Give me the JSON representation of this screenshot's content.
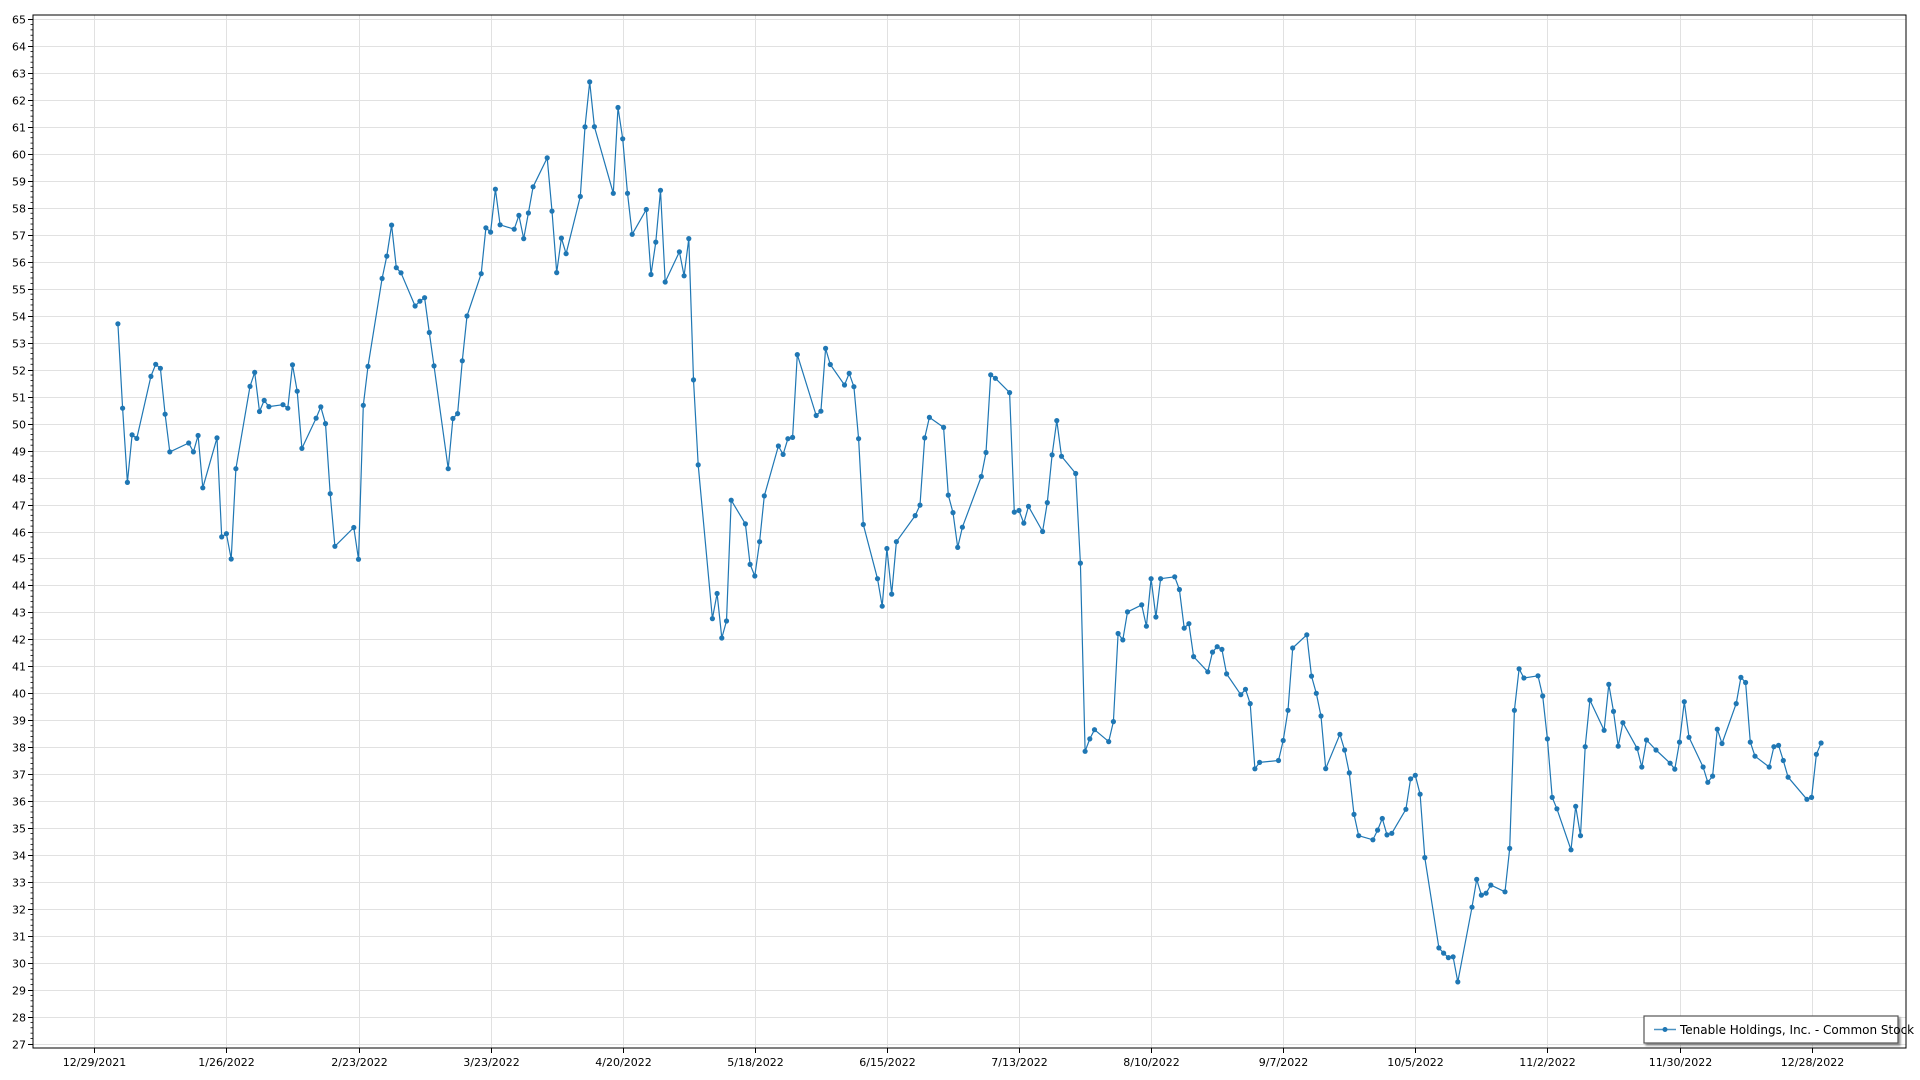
{
  "chart_data": {
    "type": "line",
    "title": "",
    "xlabel": "",
    "ylabel": "",
    "grid": true,
    "legend_position": "bottom-right",
    "ylim": [
      26.85,
      65.15
    ],
    "xlim": [
      "2021-12-16",
      "2023-01-17"
    ],
    "y_ticks": [
      27,
      28,
      29,
      30,
      31,
      32,
      33,
      34,
      35,
      36,
      37,
      38,
      39,
      40,
      41,
      42,
      43,
      44,
      45,
      46,
      47,
      48,
      49,
      50,
      51,
      52,
      53,
      54,
      55,
      56,
      57,
      58,
      59,
      60,
      61,
      62,
      63,
      64,
      65
    ],
    "x_ticks": [
      "2021-12-29",
      "2022-01-26",
      "2022-02-23",
      "2022-03-23",
      "2022-04-20",
      "2022-05-18",
      "2022-06-15",
      "2022-07-13",
      "2022-08-10",
      "2022-09-07",
      "2022-10-05",
      "2022-11-02",
      "2022-11-30",
      "2022-12-28"
    ],
    "x_tick_labels": [
      "12/29/2021",
      "1/26/2022",
      "2/23/2022",
      "3/23/2022",
      "4/20/2022",
      "5/18/2022",
      "6/15/2022",
      "7/13/2022",
      "8/10/2022",
      "9/7/2022",
      "10/5/2022",
      "11/2/2022",
      "11/30/2022",
      "12/28/2022"
    ],
    "series": [
      {
        "name": "Tenable Holdings, Inc. - Common Stock",
        "color": "#1f77b4",
        "x": [
          "2022-01-03",
          "2022-01-04",
          "2022-01-05",
          "2022-01-06",
          "2022-01-07",
          "2022-01-10",
          "2022-01-11",
          "2022-01-12",
          "2022-01-13",
          "2022-01-14",
          "2022-01-18",
          "2022-01-19",
          "2022-01-20",
          "2022-01-21",
          "2022-01-24",
          "2022-01-25",
          "2022-01-26",
          "2022-01-27",
          "2022-01-28",
          "2022-01-31",
          "2022-02-01",
          "2022-02-02",
          "2022-02-03",
          "2022-02-04",
          "2022-02-07",
          "2022-02-08",
          "2022-02-09",
          "2022-02-10",
          "2022-02-11",
          "2022-02-14",
          "2022-02-15",
          "2022-02-16",
          "2022-02-17",
          "2022-02-18",
          "2022-02-22",
          "2022-02-23",
          "2022-02-24",
          "2022-02-25",
          "2022-02-28",
          "2022-03-01",
          "2022-03-02",
          "2022-03-03",
          "2022-03-04",
          "2022-03-07",
          "2022-03-08",
          "2022-03-09",
          "2022-03-10",
          "2022-03-11",
          "2022-03-14",
          "2022-03-15",
          "2022-03-16",
          "2022-03-17",
          "2022-03-18",
          "2022-03-21",
          "2022-03-22",
          "2022-03-23",
          "2022-03-24",
          "2022-03-25",
          "2022-03-28",
          "2022-03-29",
          "2022-03-30",
          "2022-03-31",
          "2022-04-01",
          "2022-04-04",
          "2022-04-05",
          "2022-04-06",
          "2022-04-07",
          "2022-04-08",
          "2022-04-11",
          "2022-04-12",
          "2022-04-13",
          "2022-04-14",
          "2022-04-18",
          "2022-04-19",
          "2022-04-20",
          "2022-04-21",
          "2022-04-22",
          "2022-04-25",
          "2022-04-26",
          "2022-04-27",
          "2022-04-28",
          "2022-04-29",
          "2022-05-02",
          "2022-05-03",
          "2022-05-04",
          "2022-05-05",
          "2022-05-06",
          "2022-05-09",
          "2022-05-10",
          "2022-05-11",
          "2022-05-12",
          "2022-05-13",
          "2022-05-16",
          "2022-05-17",
          "2022-05-18",
          "2022-05-19",
          "2022-05-20",
          "2022-05-23",
          "2022-05-24",
          "2022-05-25",
          "2022-05-26",
          "2022-05-27",
          "2022-05-31",
          "2022-06-01",
          "2022-06-02",
          "2022-06-03",
          "2022-06-06",
          "2022-06-07",
          "2022-06-08",
          "2022-06-09",
          "2022-06-10",
          "2022-06-13",
          "2022-06-14",
          "2022-06-15",
          "2022-06-16",
          "2022-06-17",
          "2022-06-21",
          "2022-06-22",
          "2022-06-23",
          "2022-06-24",
          "2022-06-27",
          "2022-06-28",
          "2022-06-29",
          "2022-06-30",
          "2022-07-01",
          "2022-07-05",
          "2022-07-06",
          "2022-07-07",
          "2022-07-08",
          "2022-07-11",
          "2022-07-12",
          "2022-07-13",
          "2022-07-14",
          "2022-07-15",
          "2022-07-18",
          "2022-07-19",
          "2022-07-20",
          "2022-07-21",
          "2022-07-22",
          "2022-07-25",
          "2022-07-26",
          "2022-07-27",
          "2022-07-28",
          "2022-07-29",
          "2022-08-01",
          "2022-08-02",
          "2022-08-03",
          "2022-08-04",
          "2022-08-05",
          "2022-08-08",
          "2022-08-09",
          "2022-08-10",
          "2022-08-11",
          "2022-08-12",
          "2022-08-15",
          "2022-08-16",
          "2022-08-17",
          "2022-08-18",
          "2022-08-19",
          "2022-08-22",
          "2022-08-23",
          "2022-08-24",
          "2022-08-25",
          "2022-08-26",
          "2022-08-29",
          "2022-08-30",
          "2022-08-31",
          "2022-09-01",
          "2022-09-02",
          "2022-09-06",
          "2022-09-07",
          "2022-09-08",
          "2022-09-09",
          "2022-09-12",
          "2022-09-13",
          "2022-09-14",
          "2022-09-15",
          "2022-09-16",
          "2022-09-19",
          "2022-09-20",
          "2022-09-21",
          "2022-09-22",
          "2022-09-23",
          "2022-09-26",
          "2022-09-27",
          "2022-09-28",
          "2022-09-29",
          "2022-09-30",
          "2022-10-03",
          "2022-10-04",
          "2022-10-05",
          "2022-10-06",
          "2022-10-07",
          "2022-10-10",
          "2022-10-11",
          "2022-10-12",
          "2022-10-13",
          "2022-10-14",
          "2022-10-17",
          "2022-10-18",
          "2022-10-19",
          "2022-10-20",
          "2022-10-21",
          "2022-10-24",
          "2022-10-25",
          "2022-10-26",
          "2022-10-27",
          "2022-10-28",
          "2022-10-31",
          "2022-11-01",
          "2022-11-02",
          "2022-11-03",
          "2022-11-04",
          "2022-11-07",
          "2022-11-08",
          "2022-11-09",
          "2022-11-10",
          "2022-11-11",
          "2022-11-14",
          "2022-11-15",
          "2022-11-16",
          "2022-11-17",
          "2022-11-18",
          "2022-11-21",
          "2022-11-22",
          "2022-11-23",
          "2022-11-25",
          "2022-11-28",
          "2022-11-29",
          "2022-11-30",
          "2022-12-01",
          "2022-12-02",
          "2022-12-05",
          "2022-12-06",
          "2022-12-07",
          "2022-12-08",
          "2022-12-09",
          "2022-12-12",
          "2022-12-13",
          "2022-12-14",
          "2022-12-15",
          "2022-12-16",
          "2022-12-19",
          "2022-12-20",
          "2022-12-21",
          "2022-12-22",
          "2022-12-23",
          "2022-12-27",
          "2022-12-28",
          "2022-12-29",
          "2022-12-30"
        ],
        "y": [
          53.7,
          50.57,
          47.82,
          49.58,
          49.45,
          51.75,
          52.2,
          52.05,
          50.35,
          48.95,
          49.28,
          48.95,
          49.56,
          47.62,
          49.47,
          45.8,
          45.92,
          44.98,
          48.33,
          51.38,
          51.9,
          50.45,
          50.86,
          50.63,
          50.7,
          50.57,
          52.18,
          51.2,
          49.08,
          50.2,
          50.62,
          50.0,
          47.4,
          45.45,
          46.15,
          44.97,
          50.68,
          52.12,
          55.38,
          56.21,
          57.36,
          55.78,
          55.59,
          54.36,
          54.54,
          54.67,
          53.38,
          52.14,
          48.33,
          50.19,
          50.37,
          52.33,
          53.99,
          55.56,
          57.26,
          57.1,
          58.69,
          57.37,
          57.21,
          57.72,
          56.86,
          57.81,
          58.78,
          59.85,
          57.88,
          55.6,
          56.88,
          56.3,
          58.42,
          61.0,
          62.67,
          61.01,
          58.54,
          61.72,
          60.56,
          58.54,
          57.02,
          57.94,
          55.53,
          56.73,
          58.65,
          55.25,
          56.37,
          55.48,
          56.86,
          51.62,
          48.47,
          42.77,
          43.7,
          42.05,
          42.68,
          47.16,
          46.28,
          44.78,
          44.35,
          45.62,
          47.32,
          49.17,
          48.86,
          49.44,
          49.49,
          52.56,
          50.3,
          50.46,
          52.79,
          52.19,
          51.43,
          51.86,
          51.37,
          49.44,
          46.26,
          44.25,
          43.23,
          45.37,
          43.68,
          45.62,
          46.59,
          46.98,
          49.47,
          50.23,
          49.86,
          47.35,
          46.7,
          45.41,
          46.16,
          48.04,
          48.93,
          51.81,
          51.68,
          51.15,
          46.72,
          46.78,
          46.31,
          46.93,
          46.0,
          47.07,
          48.84,
          50.11,
          48.79,
          48.15,
          44.83,
          37.85,
          38.31,
          38.65,
          38.21,
          38.95,
          42.22,
          41.98,
          43.02,
          43.28,
          42.49,
          44.25,
          42.83,
          44.25,
          44.32,
          43.85,
          42.42,
          42.58,
          41.36,
          40.8,
          41.53,
          41.73,
          41.63,
          40.72,
          39.95,
          40.15,
          39.62,
          37.2,
          37.44,
          37.51,
          38.25,
          39.37,
          41.68,
          42.17,
          40.64,
          40.0,
          39.16,
          37.21,
          38.48,
          37.9,
          37.05,
          35.51,
          34.72,
          34.57,
          34.93,
          35.36,
          34.75,
          34.81,
          35.7,
          36.83,
          36.96,
          36.26,
          33.91,
          30.56,
          30.37,
          30.2,
          30.23,
          29.3,
          32.07,
          33.1,
          32.52,
          32.59,
          32.89,
          32.64,
          34.25,
          39.37,
          40.91,
          40.57,
          40.65,
          39.9,
          38.31,
          36.14,
          35.72,
          34.2,
          35.81,
          34.72,
          38.02,
          39.75,
          38.63,
          40.33,
          39.33,
          38.04,
          38.91,
          37.96,
          37.27,
          38.27,
          37.9,
          37.41,
          37.19,
          38.19,
          39.69,
          38.37,
          37.27,
          36.7,
          36.93,
          38.67,
          38.14,
          39.62,
          40.59,
          40.4,
          38.19,
          37.67,
          37.27,
          38.02,
          38.07,
          37.51,
          36.89,
          36.07,
          36.14,
          37.74,
          38.16
        ]
      }
    ]
  },
  "legend": {
    "label": "Tenable Holdings, Inc. - Common Stock"
  }
}
